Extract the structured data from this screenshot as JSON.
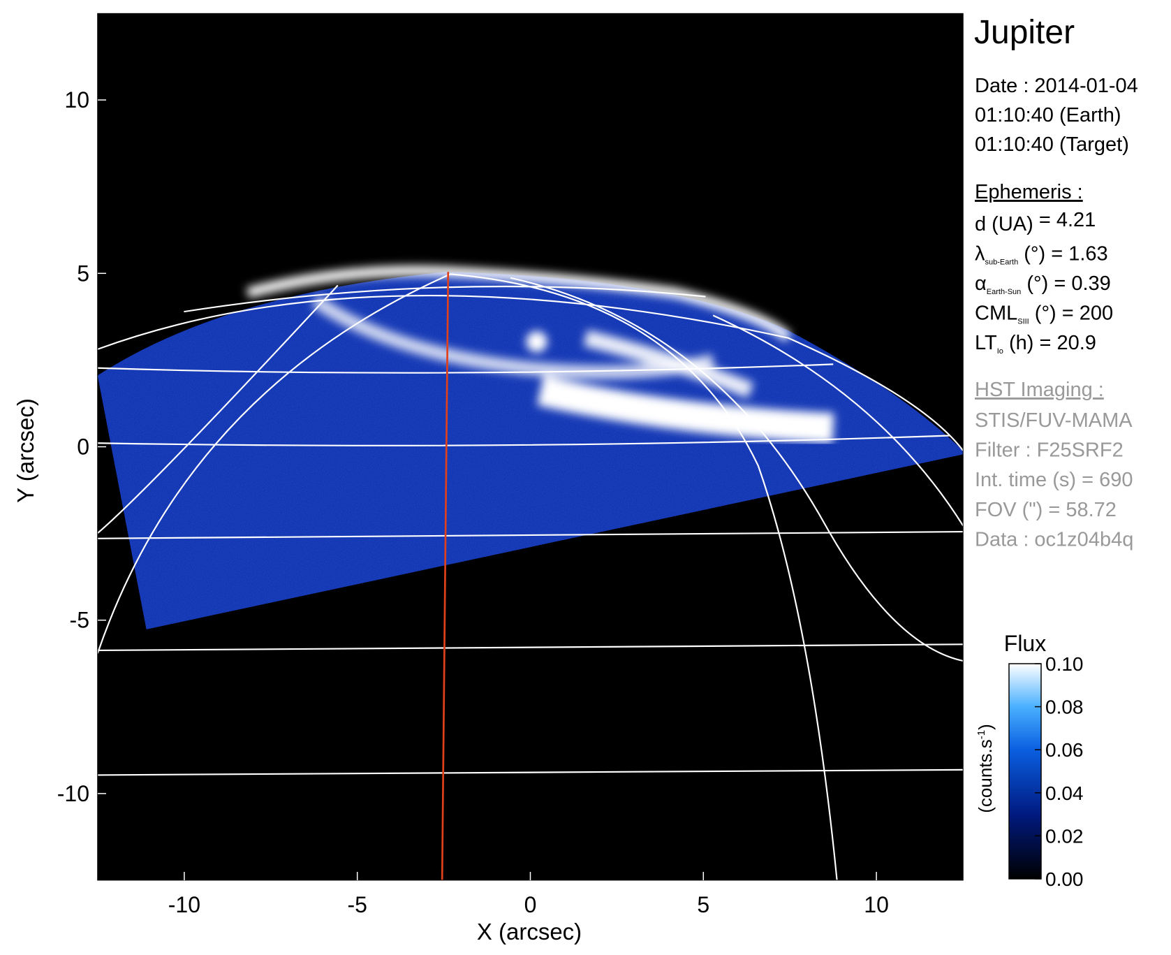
{
  "chart_data": {
    "type": "image",
    "xlabel": "X (arcsec)",
    "ylabel": "Y (arcsec)",
    "xlim": [
      -12.5,
      12.5
    ],
    "ylim": [
      -12.5,
      12.5
    ],
    "xticks": [
      -10,
      -5,
      0,
      5,
      10
    ],
    "yticks": [
      -10,
      -5,
      0,
      5,
      10
    ],
    "colorbar": {
      "title": "Flux",
      "label": "(counts.s",
      "label_sup": "-1",
      "label_end": ")",
      "lim": [
        0,
        0.1
      ],
      "ticks": [
        {
          "value": 0,
          "label": "0.00"
        },
        {
          "value": 0.02,
          "label": "0.02"
        },
        {
          "value": 0.04,
          "label": "0.04"
        },
        {
          "value": 0.06,
          "label": "0.06"
        },
        {
          "value": 0.08,
          "label": "0.08"
        },
        {
          "value": 0.1,
          "label": "0.10"
        }
      ]
    },
    "info": {
      "title": "Jupiter",
      "date": [
        "Date : 2014-01-04",
        "01:10:40 (Earth)",
        "01:10:40 (Target)"
      ],
      "ephemeris_title": "Ephemeris :",
      "ephemeris": [
        {
          "symbol": "d (UA)",
          "sub": "",
          "text": "    = 4.21"
        },
        {
          "symbol": "λ",
          "sub": "sub-Earth",
          "text": " (°) = 1.63"
        },
        {
          "symbol": "α",
          "sub": "Earth-Sun",
          "text": " (°) = 0.39"
        },
        {
          "symbol": "CML",
          "sub": "SIII",
          "text": " (°) = 200"
        },
        {
          "symbol": "LT",
          "sub": "Io",
          "text": " (h) = 20.9"
        }
      ],
      "hst_title": "HST Imaging :",
      "hst": [
        "STIS/FUV-MAMA",
        "Filter : F25SRF2",
        "Int. time (s) = 690",
        "FOV (\") = 58.72",
        "Data : oc1z04b4q"
      ]
    }
  }
}
